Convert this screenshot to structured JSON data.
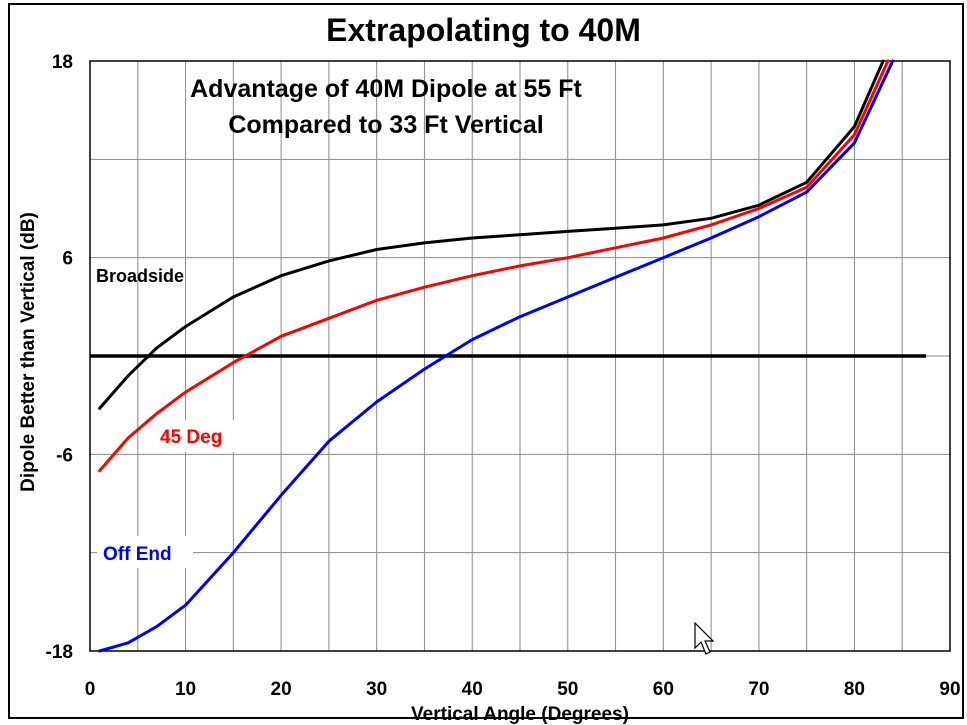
{
  "page_title": "Extrapolating to 40M",
  "chart_data": {
    "type": "line",
    "title": "Advantage of 40M Dipole at 55 Ft",
    "subtitle": "Compared to 33 Ft Vertical",
    "xlabel": "Vertical Angle  (Degrees)",
    "ylabel": "Dipole Better than Vertical (dB)",
    "xlim": [
      0,
      90
    ],
    "ylim": [
      -18,
      18
    ],
    "x_ticks": [
      "0",
      "10",
      "20",
      "30",
      "40",
      "50",
      "60",
      "70",
      "80",
      "90"
    ],
    "y_ticks": [
      "18",
      "6",
      "-6",
      "-18"
    ],
    "grid": true,
    "reference_line": {
      "y": 0
    },
    "series": [
      {
        "name": "Broadside",
        "color": "#000000",
        "x": [
          1,
          4,
          7,
          10,
          15,
          20,
          25,
          30,
          35,
          40,
          45,
          50,
          55,
          60,
          65,
          70,
          75,
          80,
          83
        ],
        "y": [
          -3.2,
          -1.2,
          0.5,
          1.8,
          3.6,
          4.9,
          5.8,
          6.5,
          6.9,
          7.2,
          7.4,
          7.6,
          7.8,
          8.0,
          8.4,
          9.2,
          10.6,
          14.0,
          18.0
        ]
      },
      {
        "name": "45 Deg",
        "color": "#ff0000",
        "x": [
          1,
          4,
          7,
          10,
          15,
          20,
          25,
          30,
          35,
          40,
          45,
          50,
          55,
          60,
          65,
          70,
          75,
          80,
          83.5
        ],
        "y": [
          -7.0,
          -5.0,
          -3.5,
          -2.2,
          -0.4,
          1.2,
          2.3,
          3.4,
          4.2,
          4.9,
          5.5,
          6.0,
          6.6,
          7.2,
          8.0,
          9.0,
          10.3,
          13.5,
          18.0
        ]
      },
      {
        "name": "Off End",
        "color": "#0000ff",
        "x": [
          1,
          4,
          7,
          10,
          15,
          20,
          25,
          30,
          35,
          40,
          45,
          50,
          55,
          60,
          65,
          70,
          75,
          80,
          84
        ],
        "y": [
          -18.0,
          -17.5,
          -16.5,
          -15.2,
          -12.0,
          -8.5,
          -5.2,
          -2.8,
          -0.8,
          1.0,
          2.4,
          3.6,
          4.8,
          6.0,
          7.2,
          8.5,
          10.0,
          13.0,
          18.0
        ]
      }
    ]
  }
}
